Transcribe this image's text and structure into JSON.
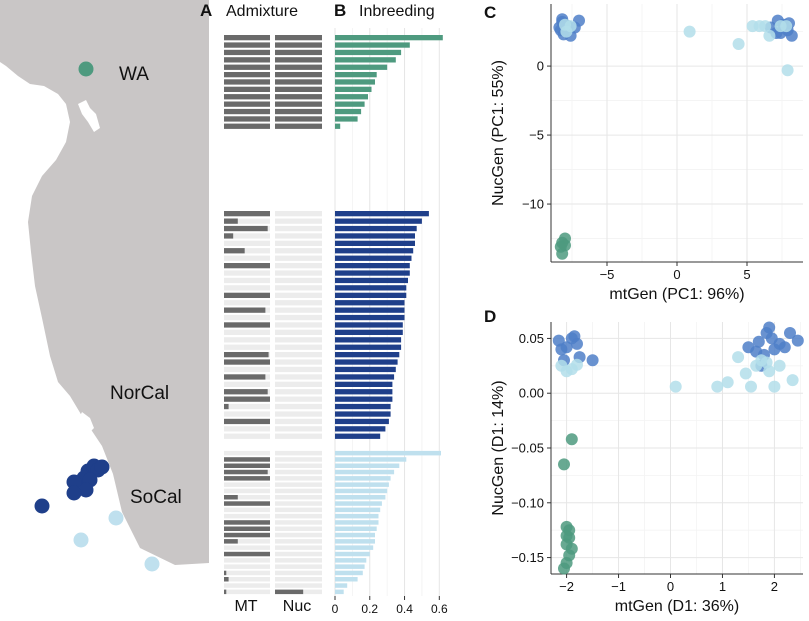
{
  "colors": {
    "land": "#c9c6c6",
    "wa": "#4e9a7f",
    "norcal": "#1f3f8a",
    "socal": "#bfe0ee",
    "admix_dark": "#6a6a6a",
    "admix_light": "#ececec",
    "scatter_blue": "#4f7fc8",
    "scatter_light": "#b3deea",
    "scatter_green": "#4e9a7f"
  },
  "map": {
    "region_labels": [
      "WA",
      "NorCal",
      "SoCal"
    ]
  },
  "panels": {
    "A": {
      "letter": "A",
      "title": "Admixture",
      "col_mt": "MT",
      "col_nuc": "Nuc"
    },
    "B": {
      "letter": "B",
      "title": "Inbreeding"
    },
    "C": {
      "letter": "C"
    },
    "D": {
      "letter": "D"
    }
  },
  "chart_data": [
    {
      "id": "admixture",
      "type": "bar",
      "title": "Admixture",
      "columns": [
        "MT",
        "Nuc"
      ],
      "groups": [
        {
          "name": "WA",
          "mt": [
            1,
            1,
            1,
            1,
            1,
            1,
            1,
            1,
            1,
            1,
            1,
            1,
            1
          ],
          "nuc": [
            1,
            1,
            1,
            1,
            1,
            1,
            1,
            1,
            1,
            1,
            1,
            1,
            1
          ]
        },
        {
          "name": "NorCal",
          "mt": [
            1,
            0.3,
            0.95,
            0.2,
            0,
            0.45,
            0,
            1,
            0,
            0,
            0,
            1,
            0,
            0.9,
            0,
            1,
            0,
            0,
            0,
            0.97,
            1,
            0,
            0.9,
            0,
            0.95,
            1,
            0.1,
            0,
            1,
            0,
            0
          ],
          "nuc": [
            0,
            0,
            0,
            0,
            0,
            0,
            0,
            0,
            0,
            0,
            0,
            0,
            0,
            0,
            0,
            0,
            0,
            0,
            0,
            0,
            0,
            0,
            0,
            0,
            0,
            0,
            0,
            0,
            0,
            0,
            0
          ]
        },
        {
          "name": "SoCal",
          "mt": [
            0,
            1,
            1,
            0.95,
            1,
            0,
            0,
            0.3,
            1,
            0,
            0,
            1,
            1,
            1,
            0.3,
            0,
            1,
            0,
            0,
            0.05,
            0.1,
            0,
            0.05
          ],
          "nuc": [
            0,
            0,
            0,
            0,
            0,
            0,
            0,
            0,
            0,
            0,
            0,
            0,
            0,
            0,
            0,
            0,
            0,
            0,
            0,
            0,
            0,
            0,
            0.6
          ]
        }
      ]
    },
    {
      "id": "inbreeding",
      "type": "bar",
      "title": "Inbreeding",
      "xlim": [
        0,
        0.65
      ],
      "xticks": [
        "0",
        "0.2",
        "0.4",
        "0.6"
      ],
      "groups": [
        {
          "name": "WA",
          "values": [
            0.62,
            0.43,
            0.38,
            0.35,
            0.3,
            0.24,
            0.23,
            0.21,
            0.19,
            0.17,
            0.15,
            0.13,
            0.03
          ]
        },
        {
          "name": "NorCal",
          "values": [
            0.54,
            0.5,
            0.47,
            0.46,
            0.46,
            0.45,
            0.44,
            0.43,
            0.43,
            0.42,
            0.41,
            0.41,
            0.4,
            0.4,
            0.4,
            0.39,
            0.39,
            0.38,
            0.38,
            0.37,
            0.36,
            0.35,
            0.34,
            0.33,
            0.33,
            0.33,
            0.32,
            0.32,
            0.31,
            0.29,
            0.26
          ]
        },
        {
          "name": "SoCal",
          "values": [
            0.61,
            0.41,
            0.37,
            0.34,
            0.32,
            0.31,
            0.3,
            0.29,
            0.27,
            0.26,
            0.25,
            0.25,
            0.24,
            0.23,
            0.23,
            0.22,
            0.2,
            0.18,
            0.17,
            0.16,
            0.13,
            0.07,
            0.05
          ]
        }
      ]
    },
    {
      "id": "pc",
      "type": "scatter",
      "xlabel": "mtGen (PC1: 96%)",
      "ylabel": "NucGen (PC1: 55%)",
      "xlim": [
        -9,
        9
      ],
      "ylim": [
        -14.2,
        4.5
      ],
      "xticks": [
        -5,
        0,
        5
      ],
      "xtick_labels": [
        "−5",
        "0",
        "5"
      ],
      "yticks": [
        0,
        -5,
        -10
      ],
      "ytick_labels": [
        "0",
        "−5",
        "−10"
      ],
      "series": [
        {
          "name": "blue",
          "color": "scatter_blue",
          "points": [
            [
              -8.2,
              3.2
            ],
            [
              -8.0,
              3.0
            ],
            [
              -8.3,
              2.6
            ],
            [
              -7.8,
              2.9
            ],
            [
              -8.1,
              2.3
            ],
            [
              -7.6,
              2.2
            ],
            [
              -8.2,
              3.4
            ],
            [
              -7.3,
              2.8
            ],
            [
              -7.0,
              3.3
            ],
            [
              -8.4,
              2.8
            ],
            [
              6.7,
              2.8
            ],
            [
              7.1,
              2.4
            ],
            [
              7.6,
              3.0
            ],
            [
              7.9,
              2.6
            ],
            [
              8.2,
              2.2
            ],
            [
              7.4,
              2.4
            ],
            [
              8.0,
              3.1
            ],
            [
              7.2,
              3.3
            ]
          ]
        },
        {
          "name": "lightblue",
          "color": "scatter_light",
          "points": [
            [
              -8.0,
              3.0
            ],
            [
              -7.6,
              2.9
            ],
            [
              -7.9,
              2.5
            ],
            [
              0.9,
              2.5
            ],
            [
              4.4,
              1.6
            ],
            [
              5.4,
              2.9
            ],
            [
              5.9,
              2.9
            ],
            [
              6.3,
              2.9
            ],
            [
              6.6,
              2.2
            ],
            [
              7.8,
              2.9
            ],
            [
              7.9,
              -0.3
            ],
            [
              7.4,
              2.9
            ]
          ]
        },
        {
          "name": "green",
          "color": "scatter_green",
          "points": [
            [
              -8.0,
              -12.5
            ],
            [
              -8.2,
              -12.8
            ],
            [
              -8.0,
              -13.0
            ],
            [
              -8.3,
              -13.1
            ],
            [
              -8.2,
              -13.6
            ]
          ]
        }
      ]
    },
    {
      "id": "d",
      "type": "scatter",
      "xlabel": "mtGen (D1: 36%)",
      "ylabel": "NucGen (D1: 14%)",
      "xlim": [
        -2.3,
        2.55
      ],
      "ylim": [
        -0.165,
        0.065
      ],
      "xticks": [
        -2,
        -1,
        0,
        1,
        2
      ],
      "xtick_labels": [
        "−2",
        "−1",
        "0",
        "1",
        "2"
      ],
      "yticks": [
        0.05,
        0,
        -0.05,
        -0.1,
        -0.15
      ],
      "ytick_labels": [
        "0.05",
        "0.00",
        "−0.05",
        "−0.10",
        "−0.15"
      ],
      "series": [
        {
          "name": "blue",
          "color": "scatter_blue",
          "points": [
            [
              -2.15,
              0.048
            ],
            [
              -2.0,
              0.042
            ],
            [
              -1.85,
              0.052
            ],
            [
              -1.8,
              0.045
            ],
            [
              -2.05,
              0.03
            ],
            [
              -1.75,
              0.033
            ],
            [
              -1.5,
              0.03
            ],
            [
              -2.1,
              0.04
            ],
            [
              -1.9,
              0.05
            ],
            [
              1.5,
              0.042
            ],
            [
              1.7,
              0.047
            ],
            [
              1.85,
              0.055
            ],
            [
              1.95,
              0.05
            ],
            [
              2.1,
              0.045
            ],
            [
              1.8,
              0.035
            ],
            [
              2.3,
              0.055
            ],
            [
              2.45,
              0.048
            ],
            [
              1.65,
              0.038
            ],
            [
              2.0,
              0.04
            ],
            [
              1.9,
              0.06
            ],
            [
              2.2,
              0.042
            ],
            [
              1.75,
              0.025
            ]
          ]
        },
        {
          "name": "lightblue",
          "color": "scatter_light",
          "points": [
            [
              -2.1,
              0.025
            ],
            [
              -1.9,
              0.022
            ],
            [
              -2.0,
              0.02
            ],
            [
              -1.8,
              0.026
            ],
            [
              0.1,
              0.006
            ],
            [
              0.9,
              0.006
            ],
            [
              1.1,
              0.01
            ],
            [
              1.3,
              0.033
            ],
            [
              1.45,
              0.018
            ],
            [
              1.55,
              0.006
            ],
            [
              1.65,
              0.025
            ],
            [
              1.75,
              0.03
            ],
            [
              1.9,
              0.02
            ],
            [
              2.0,
              0.006
            ],
            [
              2.35,
              0.012
            ],
            [
              2.1,
              0.025
            ],
            [
              1.85,
              0.028
            ]
          ]
        },
        {
          "name": "green",
          "color": "scatter_green",
          "points": [
            [
              -1.9,
              -0.042
            ],
            [
              -2.05,
              -0.065
            ],
            [
              -2.0,
              -0.122
            ],
            [
              -1.95,
              -0.125
            ],
            [
              -2.0,
              -0.13
            ],
            [
              -1.95,
              -0.132
            ],
            [
              -2.0,
              -0.138
            ],
            [
              -1.9,
              -0.142
            ],
            [
              -1.95,
              -0.148
            ],
            [
              -2.0,
              -0.155
            ],
            [
              -2.05,
              -0.16
            ]
          ]
        }
      ]
    }
  ]
}
